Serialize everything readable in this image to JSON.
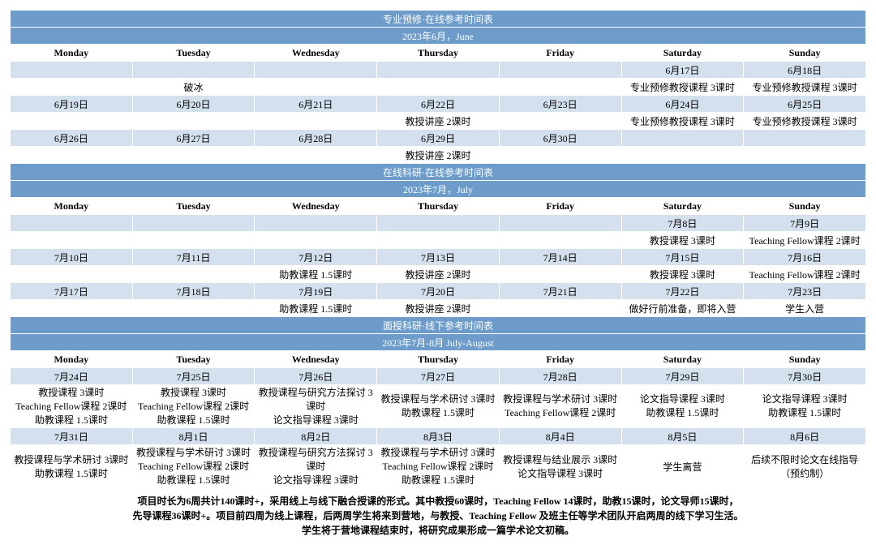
{
  "colors": {
    "header_bg": "#6d9cca",
    "header_fg": "#ffffff",
    "band_light": "#d4e0ee",
    "band_white": "#ffffff",
    "border": "#ffffff"
  },
  "days": [
    "Monday",
    "Tuesday",
    "Wednesday",
    "Thursday",
    "Friday",
    "Saturday",
    "Sunday"
  ],
  "sections": [
    {
      "title": "专业预修·在线参考时间表",
      "subtitle": "2023年6月，June",
      "rows": [
        {
          "cls": "lt",
          "cells": [
            "",
            "",
            "",
            "",
            "",
            "6月17日",
            "6月18日"
          ]
        },
        {
          "cls": "wh",
          "cells": [
            "",
            "破冰",
            "",
            "",
            "",
            "专业预修教授课程 3课时",
            "专业预修教授课程 3课时"
          ]
        },
        {
          "cls": "lt",
          "cells": [
            "6月19日",
            "6月20日",
            "6月21日",
            "6月22日",
            "6月23日",
            "6月24日",
            "6月25日"
          ]
        },
        {
          "cls": "wh",
          "cells": [
            "",
            "",
            "",
            "教授讲座 2课时",
            "",
            "专业预修教授课程 3课时",
            "专业预修教授课程 3课时"
          ]
        },
        {
          "cls": "lt",
          "cells": [
            "6月26日",
            "6月27日",
            "6月28日",
            "6月29日",
            "6月30日",
            "",
            ""
          ]
        },
        {
          "cls": "wh",
          "cells": [
            "",
            "",
            "",
            "教授讲座 2课时",
            "",
            "",
            ""
          ]
        }
      ]
    },
    {
      "title": "在线科研·在线参考时间表",
      "subtitle": "2023年7月，July",
      "rows": [
        {
          "cls": "lt",
          "cells": [
            "",
            "",
            "",
            "",
            "",
            "7月8日",
            "7月9日"
          ]
        },
        {
          "cls": "wh",
          "cells": [
            "",
            "",
            "",
            "",
            "",
            "教授课程 3课时",
            "Teaching Fellow课程 2课时"
          ]
        },
        {
          "cls": "lt",
          "cells": [
            "7月10日",
            "7月11日",
            "7月12日",
            "7月13日",
            "7月14日",
            "7月15日",
            "7月16日"
          ]
        },
        {
          "cls": "wh",
          "cells": [
            "",
            "",
            "助教课程 1.5课时",
            "教授讲座 2课时",
            "",
            "教授课程 3课时",
            "Teaching Fellow课程 2课时"
          ]
        },
        {
          "cls": "lt",
          "cells": [
            "7月17日",
            "7月18日",
            "7月19日",
            "7月20日",
            "7月21日",
            "7月22日",
            "7月23日"
          ]
        },
        {
          "cls": "wh",
          "cells": [
            "",
            "",
            "助教课程 1.5课时",
            "教授讲座 2课时",
            "",
            "做好行前准备，即将入营",
            "学生入营"
          ]
        }
      ]
    },
    {
      "title": "面授科研·线下参考时间表",
      "subtitle": "2023年7月-8月 July-August",
      "rows": [
        {
          "cls": "lt",
          "cells": [
            "7月24日",
            "7月25日",
            "7月26日",
            "7月27日",
            "7月28日",
            "7月29日",
            "7月30日"
          ]
        },
        {
          "cls": "wh",
          "cells": [
            "教授课程 3课时\nTeaching Fellow课程 2课时\n助教课程 1.5课时",
            "教授课程 3课时\nTeaching Fellow课程 2课时\n助教课程 1.5课时",
            "教授课程与研究方法探讨 3课时\n论文指导课程 3课时",
            "教授课程与学术研讨 3课时\n助教课程 1.5课时",
            "教授课程与学术研讨 3课时\nTeaching Fellow课程 2课时",
            "论文指导课程 3课时\n助教课程 1.5课时",
            "论文指导课程 3课时\n助教课程 1.5课时"
          ]
        },
        {
          "cls": "lt",
          "cells": [
            "7月31日",
            "8月1日",
            "8月2日",
            "8月3日",
            "8月4日",
            "8月5日",
            "8月6日"
          ]
        },
        {
          "cls": "wh",
          "cells": [
            "教授课程与学术研讨 3课时\n助教课程 1.5课时",
            "教授课程与学术研讨 3课时\nTeaching Fellow课程 2课时\n助教课程 1.5课时",
            "教授课程与研究方法探讨 3课时\n论文指导课程 3课时",
            "教授课程与学术研讨 3课时\nTeaching Fellow课程 2课时\n助教课程 1.5课时",
            "教授课程与结业展示 3课时\n论文指导课程 3课时",
            "学生离营",
            "后续不限时论文在线指导\n（预约制）"
          ]
        }
      ]
    }
  ],
  "footer": [
    "项目时长为6周共计140课时+，采用线上与线下融合授课的形式。其中教授60课时，Teaching Fellow 14课时，助教15课时，论文导师15课时，",
    "先导课程36课时+。项目前四周为线上课程，后两周学生将来到营地，与教授、Teaching Fellow 及班主任等学术团队开启两周的线下学习生活。",
    "学生将于营地课程结束时，将研究成果形成一篇学术论文初稿。"
  ]
}
